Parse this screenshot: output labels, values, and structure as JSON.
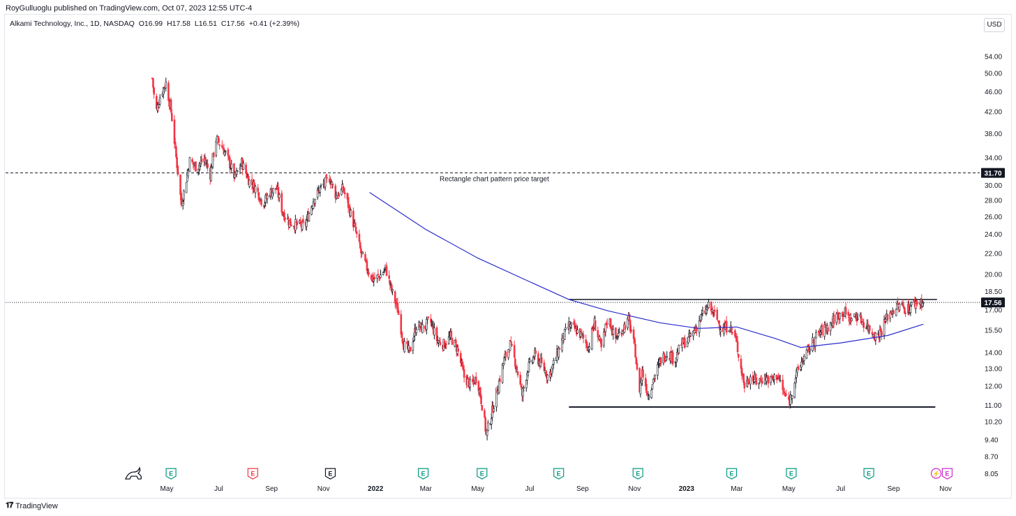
{
  "header": {
    "publisher": "RoyGulluoglu published on TradingView.com, Oct 07, 2023 12:55 UTC-4"
  },
  "symbol": {
    "name": "Alkami Technology, Inc., 1D, NASDAQ",
    "open": "O16.99",
    "high": "H17.58",
    "low": "L16.51",
    "close": "C17.56",
    "change": "+0.41 (+2.39%)"
  },
  "currency_button": "USD",
  "footer": {
    "brand": "TradingView"
  },
  "colors": {
    "up": "#ffffff",
    "up_border": "#131722",
    "down": "#f23645",
    "wick": "#131722",
    "ma": "#2b2bcc",
    "earnings_green": "#089981",
    "earnings_red": "#f23645",
    "earnings_gray": "#131722",
    "earnings_purple": "#cc2ccc"
  },
  "chart_data": {
    "type": "candlestick",
    "scale": "log",
    "y_ticks": [
      "54.00",
      "50.00",
      "46.00",
      "42.00",
      "38.00",
      "34.00",
      "30.00",
      "28.00",
      "26.00",
      "24.00",
      "22.00",
      "20.00",
      "18.50",
      "17.00",
      "15.50",
      "14.00",
      "13.00",
      "12.00",
      "11.00",
      "10.20",
      "9.40",
      "8.70",
      "8.05"
    ],
    "x_ticks": [
      "May",
      "Jul",
      "Sep",
      "Nov",
      "2022",
      "Mar",
      "May",
      "Jul",
      "Sep",
      "Nov",
      "2023",
      "Mar",
      "May",
      "Jul",
      "Sep",
      "Nov"
    ],
    "x_tick_dates": [
      "2021-05-01",
      "2021-07-01",
      "2021-09-01",
      "2021-11-01",
      "2022-01-01",
      "2022-03-01",
      "2022-05-01",
      "2022-07-01",
      "2022-09-01",
      "2022-11-01",
      "2023-01-01",
      "2023-03-01",
      "2023-05-01",
      "2023-07-01",
      "2023-09-01",
      "2023-11-01"
    ],
    "price_path": [
      [
        "2021-04-14",
        48.8
      ],
      [
        "2021-04-18",
        41.5
      ],
      [
        "2021-04-24",
        45.5
      ],
      [
        "2021-04-30",
        47.8
      ],
      [
        "2021-05-06",
        42.0
      ],
      [
        "2021-05-12",
        34.0
      ],
      [
        "2021-05-18",
        27.5
      ],
      [
        "2021-05-22",
        29.5
      ],
      [
        "2021-05-28",
        33.5
      ],
      [
        "2021-06-05",
        32.5
      ],
      [
        "2021-06-14",
        33.8
      ],
      [
        "2021-06-21",
        31.5
      ],
      [
        "2021-06-28",
        37.0
      ],
      [
        "2021-07-06",
        35.5
      ],
      [
        "2021-07-14",
        33.0
      ],
      [
        "2021-07-20",
        31.0
      ],
      [
        "2021-07-28",
        33.2
      ],
      [
        "2021-08-06",
        30.5
      ],
      [
        "2021-08-14",
        29.5
      ],
      [
        "2021-08-22",
        27.5
      ],
      [
        "2021-08-30",
        29.0
      ],
      [
        "2021-09-07",
        29.5
      ],
      [
        "2021-09-14",
        26.5
      ],
      [
        "2021-09-22",
        25.3
      ],
      [
        "2021-10-01",
        25.0
      ],
      [
        "2021-10-10",
        24.8
      ],
      [
        "2021-10-20",
        28.0
      ],
      [
        "2021-10-28",
        29.5
      ],
      [
        "2021-11-08",
        31.0
      ],
      [
        "2021-11-16",
        28.5
      ],
      [
        "2021-11-24",
        29.5
      ],
      [
        "2021-12-01",
        27.0
      ],
      [
        "2021-12-08",
        24.5
      ],
      [
        "2021-12-15",
        22.0
      ],
      [
        "2021-12-22",
        20.5
      ],
      [
        "2021-12-29",
        19.5
      ],
      [
        "2022-01-06",
        19.8
      ],
      [
        "2022-01-13",
        20.5
      ],
      [
        "2022-01-20",
        18.5
      ],
      [
        "2022-01-27",
        17.0
      ],
      [
        "2022-02-03",
        14.5
      ],
      [
        "2022-02-10",
        14.0
      ],
      [
        "2022-02-18",
        15.8
      ],
      [
        "2022-02-26",
        15.6
      ],
      [
        "2022-03-06",
        16.2
      ],
      [
        "2022-03-14",
        14.8
      ],
      [
        "2022-03-22",
        14.5
      ],
      [
        "2022-03-30",
        15.0
      ],
      [
        "2022-04-07",
        14.2
      ],
      [
        "2022-04-15",
        12.5
      ],
      [
        "2022-04-23",
        12.0
      ],
      [
        "2022-04-30",
        12.5
      ],
      [
        "2022-05-06",
        11.0
      ],
      [
        "2022-05-11",
        9.6
      ],
      [
        "2022-05-17",
        10.5
      ],
      [
        "2022-05-24",
        11.8
      ],
      [
        "2022-06-01",
        13.5
      ],
      [
        "2022-06-08",
        14.5
      ],
      [
        "2022-06-15",
        13.2
      ],
      [
        "2022-06-22",
        11.5
      ],
      [
        "2022-06-29",
        13.0
      ],
      [
        "2022-07-07",
        13.8
      ],
      [
        "2022-07-15",
        13.2
      ],
      [
        "2022-07-23",
        12.5
      ],
      [
        "2022-07-31",
        13.5
      ],
      [
        "2022-08-08",
        14.8
      ],
      [
        "2022-08-16",
        15.8
      ],
      [
        "2022-08-24",
        15.5
      ],
      [
        "2022-09-01",
        15.0
      ],
      [
        "2022-09-08",
        14.3
      ],
      [
        "2022-09-15",
        16.0
      ],
      [
        "2022-09-23",
        14.2
      ],
      [
        "2022-10-01",
        16.5
      ],
      [
        "2022-10-09",
        14.8
      ],
      [
        "2022-10-17",
        15.5
      ],
      [
        "2022-10-25",
        16.2
      ],
      [
        "2022-11-02",
        14.0
      ],
      [
        "2022-11-06",
        11.5
      ],
      [
        "2022-11-10",
        12.8
      ],
      [
        "2022-11-17",
        11.5
      ],
      [
        "2022-11-24",
        12.5
      ],
      [
        "2022-12-02",
        13.5
      ],
      [
        "2022-12-10",
        14.0
      ],
      [
        "2022-12-18",
        13.5
      ],
      [
        "2022-12-26",
        14.5
      ],
      [
        "2023-01-03",
        14.8
      ],
      [
        "2023-01-11",
        15.5
      ],
      [
        "2023-01-19",
        16.5
      ],
      [
        "2023-01-27",
        17.2
      ],
      [
        "2023-02-04",
        16.5
      ],
      [
        "2023-02-12",
        15.5
      ],
      [
        "2023-02-20",
        15.8
      ],
      [
        "2023-02-28",
        14.8
      ],
      [
        "2023-03-06",
        13.0
      ],
      [
        "2023-03-10",
        12.0
      ],
      [
        "2023-03-17",
        12.5
      ],
      [
        "2023-03-25",
        12.2
      ],
      [
        "2023-04-02",
        12.5
      ],
      [
        "2023-04-10",
        12.3
      ],
      [
        "2023-04-18",
        12.6
      ],
      [
        "2023-04-26",
        11.5
      ],
      [
        "2023-05-02",
        11.2
      ],
      [
        "2023-05-09",
        12.5
      ],
      [
        "2023-05-17",
        13.5
      ],
      [
        "2023-05-25",
        14.2
      ],
      [
        "2023-06-02",
        15.0
      ],
      [
        "2023-06-10",
        15.5
      ],
      [
        "2023-06-18",
        15.8
      ],
      [
        "2023-06-26",
        16.5
      ],
      [
        "2023-07-04",
        16.8
      ],
      [
        "2023-07-12",
        16.3
      ],
      [
        "2023-07-20",
        16.5
      ],
      [
        "2023-07-28",
        16.0
      ],
      [
        "2023-08-05",
        15.5
      ],
      [
        "2023-08-12",
        15.0
      ],
      [
        "2023-08-18",
        15.5
      ],
      [
        "2023-08-25",
        16.5
      ],
      [
        "2023-09-01",
        17.0
      ],
      [
        "2023-09-09",
        17.3
      ],
      [
        "2023-09-17",
        17.0
      ],
      [
        "2023-09-25",
        17.5
      ],
      [
        "2023-10-03",
        17.6
      ],
      [
        "2023-10-06",
        17.56
      ]
    ],
    "moving_average": {
      "points": [
        [
          "2021-12-25",
          29.0
        ],
        [
          "2022-03-01",
          24.5
        ],
        [
          "2022-05-01",
          21.5
        ],
        [
          "2022-07-01",
          19.3
        ],
        [
          "2022-08-16",
          17.8
        ],
        [
          "2022-10-01",
          16.9
        ],
        [
          "2022-12-01",
          16.0
        ],
        [
          "2023-01-15",
          15.6
        ],
        [
          "2023-03-01",
          15.7
        ],
        [
          "2023-04-15",
          14.9
        ],
        [
          "2023-05-15",
          14.3
        ],
        [
          "2023-07-01",
          14.6
        ],
        [
          "2023-08-25",
          15.1
        ],
        [
          "2023-10-06",
          15.9
        ]
      ]
    },
    "target_line": {
      "price": 31.7,
      "label": "Rectangle chart pattern price target",
      "price_label": "31.70"
    },
    "rectangle_top": {
      "price": 17.8,
      "from": "2022-08-16",
      "to": "2023-10-22"
    },
    "rectangle_bottom": {
      "price": 10.9,
      "from": "2022-08-16",
      "to": "2023-10-20"
    },
    "last_price": {
      "price": 17.56,
      "label": "17.56"
    },
    "earnings_markers": [
      {
        "date": "2021-05-06",
        "type": "green",
        "label": "E"
      },
      {
        "date": "2021-08-10",
        "type": "red",
        "label": "E"
      },
      {
        "date": "2021-11-09",
        "type": "gray",
        "label": "E"
      },
      {
        "date": "2022-02-26",
        "type": "green",
        "label": "E"
      },
      {
        "date": "2022-05-06",
        "type": "green",
        "label": "E"
      },
      {
        "date": "2022-08-04",
        "type": "green",
        "label": "E"
      },
      {
        "date": "2022-11-05",
        "type": "green",
        "label": "E"
      },
      {
        "date": "2023-02-23",
        "type": "green",
        "label": "E"
      },
      {
        "date": "2023-05-04",
        "type": "green",
        "label": "E"
      },
      {
        "date": "2023-08-03",
        "type": "green",
        "label": "E"
      },
      {
        "date": "2023-10-21",
        "type": "dividend",
        "label": "⚡"
      },
      {
        "date": "2023-11-03",
        "type": "purple",
        "label": "E"
      }
    ]
  }
}
